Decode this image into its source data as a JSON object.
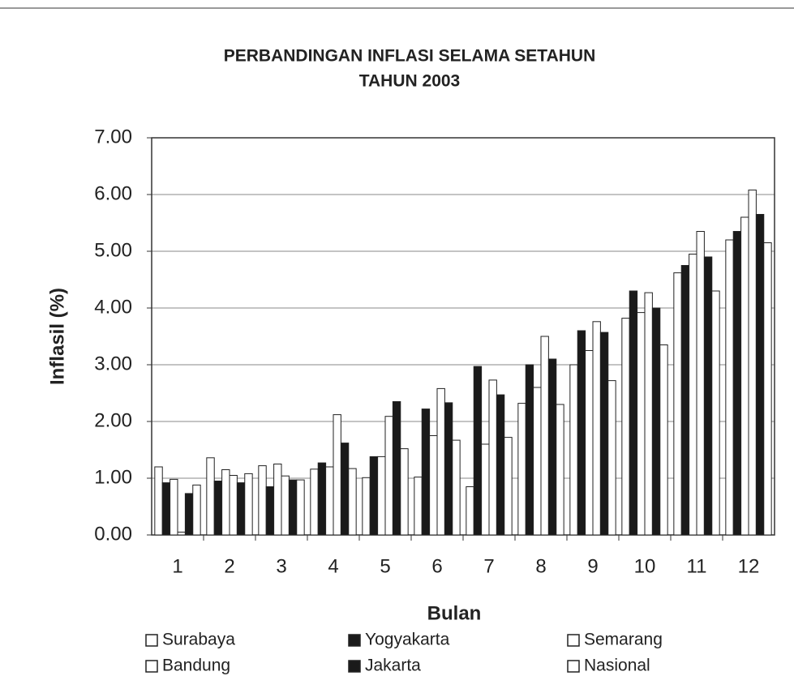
{
  "chart_data": {
    "type": "bar",
    "title": "PERBANDINGAN INFLASI SELAMA SETAHUN",
    "subtitle": "TAHUN 2003",
    "x_label": "Bulan",
    "y_label": "Inflasil (%)",
    "categories": [
      "1",
      "2",
      "3",
      "4",
      "5",
      "6",
      "7",
      "8",
      "9",
      "10",
      "11",
      "12"
    ],
    "series": [
      {
        "name": "Surabaya",
        "color": "#ffffff",
        "values": [
          1.2,
          1.36,
          1.22,
          1.16,
          1.01,
          1.02,
          0.85,
          2.32,
          3.0,
          3.82,
          4.62,
          5.2
        ]
      },
      {
        "name": "Yogyakarta",
        "color": "#1a1a1a",
        "values": [
          0.92,
          0.95,
          0.85,
          1.27,
          1.38,
          2.22,
          2.97,
          3.0,
          3.6,
          4.3,
          4.75,
          5.35
        ]
      },
      {
        "name": "Semarang",
        "color": "#ffffff",
        "values": [
          0.98,
          1.15,
          1.25,
          1.2,
          1.38,
          1.75,
          1.6,
          2.6,
          3.25,
          3.92,
          4.95,
          5.6
        ]
      },
      {
        "name": "Bandung",
        "color": "#ffffff",
        "values": [
          0.05,
          1.05,
          1.04,
          2.12,
          2.09,
          2.58,
          2.73,
          3.5,
          3.76,
          4.27,
          5.35,
          6.08
        ]
      },
      {
        "name": "Jakarta",
        "color": "#1a1a1a",
        "values": [
          0.73,
          0.92,
          0.97,
          1.62,
          2.35,
          2.33,
          2.47,
          3.1,
          3.57,
          4.0,
          4.9,
          5.65
        ]
      },
      {
        "name": "Nasional",
        "color": "#ffffff",
        "values": [
          0.88,
          1.08,
          0.97,
          1.17,
          1.52,
          1.67,
          1.72,
          2.3,
          2.72,
          3.35,
          4.3,
          5.15
        ]
      }
    ],
    "ylim": [
      0,
      7
    ],
    "yticks": [
      {
        "value": 0,
        "label": "0.00"
      },
      {
        "value": 1,
        "label": "1.00"
      },
      {
        "value": 2,
        "label": "2.00"
      },
      {
        "value": 3,
        "label": "3.00"
      },
      {
        "value": 4,
        "label": "4.00"
      },
      {
        "value": 5,
        "label": "5.00"
      },
      {
        "value": 6,
        "label": "6.00"
      },
      {
        "value": 7,
        "label": "7.00"
      }
    ],
    "grid": true,
    "legend": "bottom"
  }
}
